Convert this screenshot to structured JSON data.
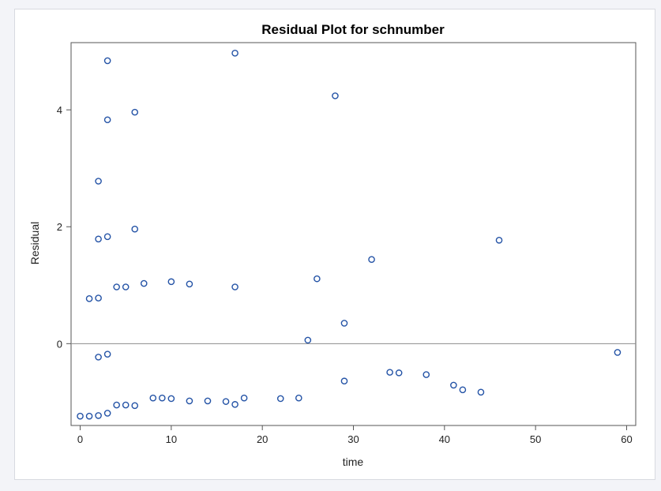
{
  "chart_data": {
    "type": "scatter",
    "title": "Residual Plot for schnumber",
    "xlabel": "time",
    "ylabel": "Residual",
    "xlim": [
      -1,
      61
    ],
    "ylim": [
      -1.4,
      5.15
    ],
    "xticks": [
      "0",
      "10",
      "20",
      "30",
      "40",
      "50",
      "60"
    ],
    "yticks": [
      "0",
      "2",
      "4"
    ],
    "reference_line_y": 0,
    "grid": false,
    "marker": "open-circle",
    "colors": {
      "marker": "#2453a6",
      "reference_line": "#8c8c8c",
      "axes": "#555555"
    },
    "series": [
      {
        "points": [
          [
            0,
            -1.24
          ],
          [
            1,
            -1.24
          ],
          [
            2,
            -1.23
          ],
          [
            3,
            -1.19
          ],
          [
            4,
            -1.05
          ],
          [
            5,
            -1.05
          ],
          [
            6,
            -1.06
          ],
          [
            8,
            -0.93
          ],
          [
            9,
            -0.93
          ],
          [
            10,
            -0.94
          ],
          [
            12,
            -0.98
          ],
          [
            14,
            -0.98
          ],
          [
            16,
            -0.99
          ],
          [
            17,
            -1.04
          ],
          [
            18,
            -0.93
          ],
          [
            22,
            -0.94
          ],
          [
            24,
            -0.93
          ],
          [
            29,
            -0.64
          ],
          [
            34,
            -0.49
          ],
          [
            35,
            -0.5
          ],
          [
            38,
            -0.53
          ],
          [
            41,
            -0.71
          ],
          [
            42,
            -0.79
          ],
          [
            44,
            -0.83
          ],
          [
            2,
            -0.23
          ],
          [
            3,
            -0.18
          ],
          [
            59,
            -0.15
          ],
          [
            25,
            0.06
          ],
          [
            29,
            0.35
          ],
          [
            1,
            0.77
          ],
          [
            2,
            0.78
          ],
          [
            4,
            0.97
          ],
          [
            5,
            0.97
          ],
          [
            7,
            1.03
          ],
          [
            10,
            1.06
          ],
          [
            12,
            1.02
          ],
          [
            17,
            0.97
          ],
          [
            26,
            1.11
          ],
          [
            32,
            1.44
          ],
          [
            2,
            1.79
          ],
          [
            3,
            1.83
          ],
          [
            6,
            1.96
          ],
          [
            46,
            1.77
          ],
          [
            2,
            2.78
          ],
          [
            3,
            3.83
          ],
          [
            6,
            3.96
          ],
          [
            28,
            4.24
          ],
          [
            3,
            4.84
          ],
          [
            17,
            4.97
          ]
        ]
      }
    ]
  }
}
